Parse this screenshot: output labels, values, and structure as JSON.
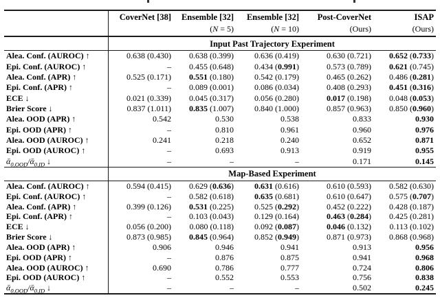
{
  "header": {
    "columns": [
      {
        "name": "CoverNet [38]",
        "sub": ""
      },
      {
        "name": "Ensemble [32]",
        "sub": "(^N^ = 5)"
      },
      {
        "name": "Ensemble [32]",
        "sub": "(^N^ = 10)"
      },
      {
        "name": "Post-CoverNet",
        "sub": "(Ours)"
      },
      {
        "name": "ISAP",
        "sub": "(Ours)"
      }
    ]
  },
  "sections": [
    {
      "title": "Input Past Trajectory Experiment",
      "rows": [
        {
          "label": "Alea. Conf. (AUROC) ↑",
          "values": [
            "0.638 (0.430)",
            "0.638 (0.399)",
            "0.636 (0.419)",
            "0.630 (0.721)",
            "*0.652* (*0.733*)"
          ]
        },
        {
          "label": "Epi. Conf. (AUROC) ↑",
          "values": [
            "–",
            "0.455 (0.648)",
            "0.434 (*0.991*)",
            "0.573 (0.789)",
            "*0.621* (0.745)"
          ]
        },
        {
          "label": "Alea. Conf. (APR) ↑",
          "values": [
            "0.525 (0.171)",
            "*0.551* (0.180)",
            "0.542 (0.179)",
            "0.465 (0.262)",
            "0.486 (*0.281*)"
          ]
        },
        {
          "label": "Epi. Conf. (APR) ↑",
          "values": [
            "–",
            "0.089 (0.001)",
            "0.086 (0.034)",
            "0.408 (0.293)",
            "*0.451* (*0.316*)"
          ]
        },
        {
          "label": "ECE ↓",
          "values": [
            "0.021 (0.339)",
            "0.045 (0.317)",
            "0.056 (0.280)",
            "*0.017* (0.198)",
            "0.048 (*0.053*)"
          ]
        },
        {
          "label": "Brier Score ↓",
          "values": [
            "0.837 (1.011)",
            "*0.835* (1.007)",
            "0.840 (1.000)",
            "0.857 (0.963)",
            "0.850 (*0.960*)"
          ]
        },
        {
          "label": "Alea. OOD (APR) ↑",
          "values": [
            "0.542",
            "0.530",
            "0.538",
            "0.833",
            "*0.930*"
          ]
        },
        {
          "label": "Epi. OOD (APR) ↑",
          "values": [
            "–",
            "0.810",
            "0.961",
            "0.960",
            "*0.976*"
          ]
        },
        {
          "label": "Alea. OOD (AUROC) ↑",
          "values": [
            "0.241",
            "0.218",
            "0.240",
            "0.652",
            "*0.871*"
          ]
        },
        {
          "label": "Epi. OOD (AUROC) ↑",
          "values": [
            "–",
            "0.693",
            "0.913",
            "0.919",
            "*0.955*"
          ]
        },
        {
          "label": "^ᾱ~0,OOD~/ᾱ~0,ID~ ↓^",
          "values": [
            "–",
            "–",
            "–",
            "0.171",
            "*0.145*"
          ]
        }
      ]
    },
    {
      "title": "Map-Based Experiment",
      "rows": [
        {
          "label": "Alea. Conf. (AUROC) ↑",
          "values": [
            "0.594 (0.415)",
            "0.629 (*0.636*)",
            "*0.631* (0.616)",
            "0.610 (0.593)",
            "0.582 (0.630)"
          ]
        },
        {
          "label": "Epi. Conf. (AUROC) ↑",
          "values": [
            "–",
            "0.582 (0.618)",
            "*0.635* (0.681)",
            "0.610 (0.647)",
            "0.575 (*0.707*)"
          ]
        },
        {
          "label": "Alea. Conf. (APR) ↑",
          "values": [
            "0.399 (0.126)",
            "*0.531* (0.225)",
            "0.525 (*0.292*)",
            "0.452 (0.222)",
            "0.428 (0.187)"
          ]
        },
        {
          "label": "Epi. Conf. (APR) ↑",
          "values": [
            "–",
            "0.103 (0.043)",
            "0.129 (0.164)",
            "*0.463* (*0.284*)",
            "0.425 (0.281)"
          ]
        },
        {
          "label": "ECE ↓",
          "values": [
            "0.056 (0.200)",
            "0.080 (0.118)",
            "0.092 (*0.087*)",
            "*0.046* (0.132)",
            "0.113 (0.102)"
          ]
        },
        {
          "label": "Brier Score ↓",
          "values": [
            "0.873 (0.985)",
            "*0.845* (0.964)",
            "0.852 (*0.949*)",
            "0.871 (0.973)",
            "0.868 (0.968)"
          ]
        },
        {
          "label": "Alea. OOD (APR) ↑",
          "values": [
            "0.906",
            "0.946",
            "0.941",
            "0.913",
            "*0.956*"
          ]
        },
        {
          "label": "Epi. OOD (APR) ↑",
          "values": [
            "–",
            "0.876",
            "0.875",
            "0.941",
            "*0.968*"
          ]
        },
        {
          "label": "Alea. OOD (AUROC) ↑",
          "values": [
            "0.690",
            "0.786",
            "0.777",
            "0.724",
            "*0.806*"
          ]
        },
        {
          "label": "Epi. OOD (AUROC) ↑",
          "values": [
            "–",
            "0.552",
            "0.553",
            "0.756",
            "*0.838*"
          ]
        },
        {
          "label": "^ᾱ~0,OOD~/ᾱ~0,ID~ ↓^",
          "values": [
            "–",
            "–",
            "–",
            "0.502",
            "*0.245*"
          ]
        }
      ]
    }
  ]
}
